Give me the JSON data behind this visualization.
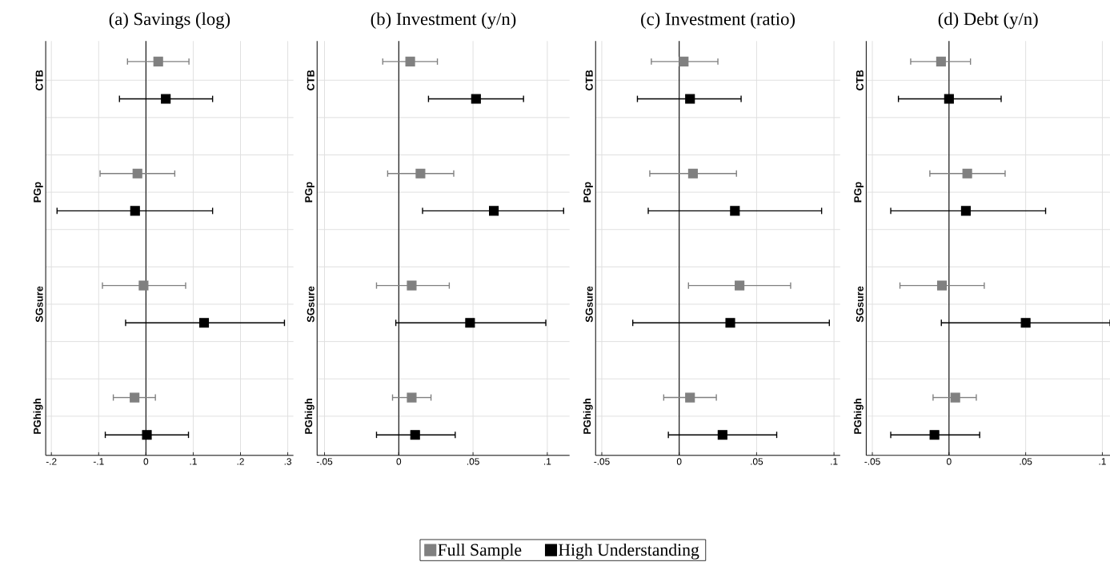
{
  "chart_data": [
    {
      "type": "scatter",
      "title": "(a) Savings (log)",
      "orientation": "horizontal",
      "marker": "square",
      "grid": true,
      "legend": "bottom",
      "categories": [
        "CTB",
        "PGp",
        "SGsure",
        "PGhigh"
      ],
      "xlim": [
        -0.212,
        0.312
      ],
      "xticks": [
        {
          "value": -0.2,
          "label": "-.2"
        },
        {
          "value": -0.1,
          "label": "-.1"
        },
        0,
        {
          "value": 0.1,
          "label": ".1"
        },
        {
          "value": 0.2,
          "label": ".2"
        },
        {
          "value": 0.3,
          "label": ".3"
        }
      ],
      "ref_lines": [
        {
          "axis": "x",
          "value": 0
        }
      ],
      "series": [
        {
          "name": "Full Sample",
          "color": "#808080",
          "values": [
            0.026,
            -0.018,
            -0.005,
            -0.024
          ],
          "errors": [
            [
              -0.039,
              0.091
            ],
            [
              -0.097,
              0.061
            ],
            [
              -0.092,
              0.084
            ],
            [
              -0.069,
              0.02
            ]
          ]
        },
        {
          "name": "High Understanding",
          "color": "#000000",
          "values": [
            0.042,
            -0.023,
            0.123,
            0.002
          ],
          "errors": [
            [
              -0.056,
              0.141
            ],
            [
              -0.188,
              0.141
            ],
            [
              -0.043,
              0.293
            ],
            [
              -0.086,
              0.09
            ]
          ]
        }
      ]
    },
    {
      "type": "scatter",
      "title": "(b) Investment (y/n)",
      "orientation": "horizontal",
      "marker": "square",
      "grid": true,
      "categories": [
        "CTB",
        "PGp",
        "SGsure",
        "PGhigh"
      ],
      "xlim": [
        -0.055,
        0.115
      ],
      "xticks": [
        {
          "value": -0.05,
          "label": "-.05"
        },
        0,
        {
          "value": 0.05,
          "label": ".05"
        },
        {
          "value": 0.1,
          "label": ".1"
        }
      ],
      "ref_lines": [
        {
          "axis": "x",
          "value": 0
        }
      ],
      "series": [
        {
          "color": "#808080",
          "values": [
            0.0077,
            0.0146,
            0.0087,
            0.0087
          ],
          "errors": [
            [
              -0.0108,
              0.026
            ],
            [
              -0.0075,
              0.037
            ],
            [
              -0.015,
              0.034
            ],
            [
              -0.0042,
              0.0217
            ]
          ]
        },
        {
          "color": "#000000",
          "values": [
            0.052,
            0.064,
            0.048,
            0.011
          ],
          "errors": [
            [
              0.02,
              0.084
            ],
            [
              0.016,
              0.111
            ],
            [
              -0.002,
              0.099
            ],
            [
              -0.015,
              0.038
            ]
          ]
        }
      ]
    },
    {
      "type": "scatter",
      "title": "(c) Investment (ratio)",
      "orientation": "horizontal",
      "marker": "square",
      "grid": true,
      "categories": [
        "CTB",
        "PGp",
        "SGsure",
        "PGhigh"
      ],
      "xlim": [
        -0.054,
        0.104
      ],
      "xticks": [
        {
          "value": -0.05,
          "label": "-.05"
        },
        0,
        {
          "value": 0.05,
          "label": ".05"
        },
        {
          "value": 0.1,
          "label": ".1"
        }
      ],
      "ref_lines": [
        {
          "axis": "x",
          "value": 0
        }
      ],
      "series": [
        {
          "color": "#808080",
          "values": [
            0.0029,
            0.0089,
            0.039,
            0.007
          ],
          "errors": [
            [
              -0.018,
              0.025
            ],
            [
              -0.019,
              0.037
            ],
            [
              0.006,
              0.072
            ],
            [
              -0.01,
              0.024
            ]
          ]
        },
        {
          "color": "#000000",
          "values": [
            0.007,
            0.036,
            0.033,
            0.028
          ],
          "errors": [
            [
              -0.027,
              0.04
            ],
            [
              -0.02,
              0.092
            ],
            [
              -0.03,
              0.097
            ],
            [
              -0.007,
              0.063
            ]
          ]
        }
      ]
    },
    {
      "type": "scatter",
      "title": "(d) Debt (y/n)",
      "orientation": "horizontal",
      "marker": "square",
      "grid": true,
      "categories": [
        "CTB",
        "PGp",
        "SGsure",
        "PGhigh"
      ],
      "xlim": [
        -0.054,
        0.105
      ],
      "xticks": [
        {
          "value": -0.05,
          "label": "-.05"
        },
        0,
        {
          "value": 0.05,
          "label": ".05"
        },
        {
          "value": 0.1,
          "label": ".1"
        }
      ],
      "ref_lines": [
        {
          "axis": "x",
          "value": 0
        }
      ],
      "series": [
        {
          "color": "#808080",
          "values": [
            -0.0052,
            0.0119,
            -0.0046,
            0.0041
          ],
          "errors": [
            [
              -0.025,
              0.014
            ],
            [
              -0.0125,
              0.0366
            ],
            [
              -0.032,
              0.023
            ],
            [
              -0.0104,
              0.0178
            ]
          ]
        },
        {
          "color": "#000000",
          "values": [
            0.0,
            0.011,
            0.05,
            -0.0095
          ],
          "errors": [
            [
              -0.033,
              0.034
            ],
            [
              -0.038,
              0.063
            ],
            [
              -0.005,
              0.105
            ],
            [
              -0.038,
              0.02
            ]
          ]
        }
      ]
    }
  ]
}
